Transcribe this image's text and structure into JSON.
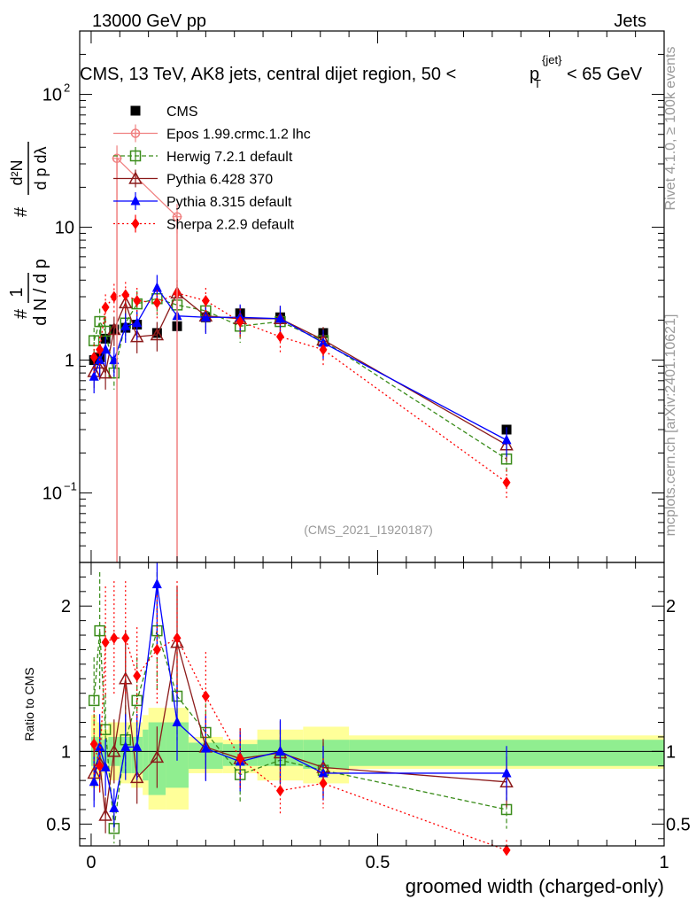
{
  "header": {
    "left": "13000 GeV pp",
    "right": "Jets",
    "title": "CMS, 13 TeV, AK8 jets, central dijet region, 50 < p_T^{jet} < 65 GeV",
    "title_main": "CMS, 13 TeV, AK8 jets, central dijet region, 50 <",
    "title_p": "p",
    "title_sub": "T",
    "title_sup": "{jet}",
    "title_tail": "< 65 GeV"
  },
  "side": {
    "rivet": "Rivet 4.1.0, ≥ 100k events",
    "mcplots": "mcplots.cern.ch [arXiv:2401.10621]"
  },
  "watermark": "(CMS_2021_I1920187)",
  "ylabel_main": "1/N dN/dp_T d²N/dp_T dλ",
  "ylabel_ratio": "Ratio to CMS",
  "xlabel": "groomed width (charged-only)",
  "colors": {
    "cms": "#000000",
    "epos": "#f08080",
    "herwig": "#3a8c1a",
    "pythia6": "#8b1a1a",
    "pythia8": "#0000ff",
    "sherpa": "#ff0000",
    "band_inner": "#90ee90",
    "band_outer": "#ffff99"
  },
  "chart_data": [
    {
      "type": "scatter",
      "panel": "main",
      "yscale": "log",
      "xlim": [
        -0.02,
        1.0
      ],
      "ylim": [
        0.03,
        300
      ],
      "yticks": [
        {
          "v": 0.1,
          "label": "10",
          "exp": "−1"
        },
        {
          "v": 1,
          "label": "1"
        },
        {
          "v": 10,
          "label": "10"
        },
        {
          "v": 100,
          "label": "10",
          "exp": "2"
        }
      ],
      "series": [
        {
          "name": "CMS",
          "key": "cms",
          "label": "CMS",
          "x": [
            0.005,
            0.015,
            0.025,
            0.04,
            0.06,
            0.08,
            0.115,
            0.15,
            0.2,
            0.26,
            0.33,
            0.405,
            0.725
          ],
          "y": [
            1.0,
            1.05,
            1.45,
            1.7,
            1.75,
            1.85,
            1.6,
            1.8,
            2.1,
            2.25,
            2.1,
            1.6,
            0.3
          ]
        },
        {
          "name": "Epos 1.99.crmc.1.2 lhc",
          "key": "epos",
          "label": "Epos 1.99.crmc.1.2 lhc",
          "x": [
            0.045,
            0.15
          ],
          "y": [
            33,
            12
          ]
        },
        {
          "name": "Herwig 7.2.1 default",
          "key": "herwig",
          "label": "Herwig 7.2.1 default",
          "x": [
            0.005,
            0.015,
            0.025,
            0.04,
            0.06,
            0.08,
            0.115,
            0.15,
            0.2,
            0.26,
            0.33,
            0.405,
            0.725
          ],
          "y": [
            1.4,
            1.95,
            1.65,
            0.8,
            1.9,
            2.65,
            2.9,
            2.6,
            2.35,
            1.8,
            1.95,
            1.4,
            0.18
          ]
        },
        {
          "name": "Pythia 6.428 370",
          "key": "pythia6",
          "label": "Pythia 6.428 370",
          "x": [
            0.005,
            0.015,
            0.025,
            0.04,
            0.06,
            0.08,
            0.115,
            0.15,
            0.2,
            0.26,
            0.33,
            0.405,
            0.725
          ],
          "y": [
            0.82,
            0.95,
            0.8,
            1.7,
            2.7,
            1.5,
            1.55,
            3.2,
            2.15,
            2.05,
            2.05,
            1.42,
            0.23
          ]
        },
        {
          "name": "Pythia 8.315 default",
          "key": "pythia8",
          "label": "Pythia 8.315 default",
          "x": [
            0.005,
            0.015,
            0.025,
            0.04,
            0.06,
            0.08,
            0.115,
            0.15,
            0.2,
            0.26,
            0.33,
            0.405,
            0.725
          ],
          "y": [
            0.75,
            1.0,
            1.2,
            1.0,
            1.8,
            1.9,
            3.5,
            2.15,
            2.1,
            2.1,
            2.05,
            1.35,
            0.25
          ]
        },
        {
          "name": "Sherpa 2.2.9 default",
          "key": "sherpa",
          "label": "Sherpa 2.2.9 default",
          "x": [
            0.005,
            0.015,
            0.025,
            0.04,
            0.06,
            0.08,
            0.115,
            0.15,
            0.2,
            0.26,
            0.33,
            0.405,
            0.725
          ],
          "y": [
            1.05,
            1.2,
            2.5,
            3.0,
            3.1,
            2.8,
            2.7,
            3.2,
            2.8,
            1.95,
            1.5,
            1.2,
            0.12
          ]
        }
      ]
    },
    {
      "type": "scatter",
      "panel": "ratio",
      "xlim": [
        -0.02,
        1.0
      ],
      "ylim": [
        0.35,
        2.3
      ],
      "yticks": [
        0.5,
        1,
        2
      ],
      "xticks": [
        0,
        0.5,
        1
      ],
      "band": {
        "edges": [
          0.0,
          0.01,
          0.02,
          0.03,
          0.05,
          0.07,
          0.09,
          0.1,
          0.13,
          0.17,
          0.23,
          0.29,
          0.37,
          0.45,
          1.0
        ],
        "inner": [
          [
            0.9,
            1.1
          ],
          [
            0.9,
            1.1
          ],
          [
            0.92,
            1.08
          ],
          [
            0.9,
            1.1
          ],
          [
            0.85,
            1.1
          ],
          [
            0.85,
            1.1
          ],
          [
            0.8,
            1.15
          ],
          [
            0.7,
            1.2
          ],
          [
            0.75,
            1.2
          ],
          [
            0.88,
            1.06
          ],
          [
            0.9,
            1.05
          ],
          [
            0.9,
            1.08
          ],
          [
            0.88,
            1.08
          ],
          [
            0.9,
            1.08
          ]
        ],
        "outer": [
          [
            0.75,
            1.25
          ],
          [
            0.8,
            1.2
          ],
          [
            0.85,
            1.15
          ],
          [
            0.8,
            1.2
          ],
          [
            0.78,
            1.2
          ],
          [
            0.75,
            1.2
          ],
          [
            0.7,
            1.25
          ],
          [
            0.6,
            1.3
          ],
          [
            0.6,
            1.3
          ],
          [
            0.85,
            1.1
          ],
          [
            0.85,
            1.08
          ],
          [
            0.8,
            1.15
          ],
          [
            0.78,
            1.17
          ],
          [
            0.88,
            1.11
          ]
        ]
      },
      "series": [
        {
          "key": "herwig",
          "x": [
            0.005,
            0.015,
            0.025,
            0.04,
            0.06,
            0.08,
            0.115,
            0.15,
            0.2,
            0.26,
            0.33,
            0.405,
            0.725
          ],
          "y": [
            1.35,
            1.83,
            1.15,
            0.47,
            1.08,
            1.35,
            1.83,
            1.38,
            1.13,
            0.84,
            0.94,
            0.87,
            0.6
          ]
        },
        {
          "key": "pythia6",
          "x": [
            0.005,
            0.015,
            0.025,
            0.04,
            0.06,
            0.08,
            0.115,
            0.15,
            0.2,
            0.26,
            0.33,
            0.405,
            0.725
          ],
          "y": [
            0.85,
            0.92,
            0.56,
            1.0,
            1.5,
            0.82,
            0.96,
            1.75,
            1.03,
            0.95,
            0.99,
            0.89,
            0.79
          ]
        },
        {
          "key": "pythia8",
          "x": [
            0.005,
            0.015,
            0.025,
            0.04,
            0.06,
            0.08,
            0.115,
            0.15,
            0.2,
            0.26,
            0.33,
            0.405,
            0.725
          ],
          "y": [
            0.79,
            1.03,
            0.89,
            0.61,
            1.03,
            1.03,
            2.15,
            1.2,
            1.02,
            0.93,
            1.0,
            0.85,
            0.85
          ]
        },
        {
          "key": "sherpa",
          "x": [
            0.005,
            0.015,
            0.025,
            0.04,
            0.06,
            0.08,
            0.115,
            0.15,
            0.2,
            0.26,
            0.33,
            0.405,
            0.725
          ],
          "y": [
            1.05,
            0.9,
            1.75,
            1.78,
            1.78,
            1.52,
            1.7,
            1.78,
            1.38,
            0.95,
            0.73,
            0.78,
            0.32
          ]
        }
      ]
    }
  ]
}
